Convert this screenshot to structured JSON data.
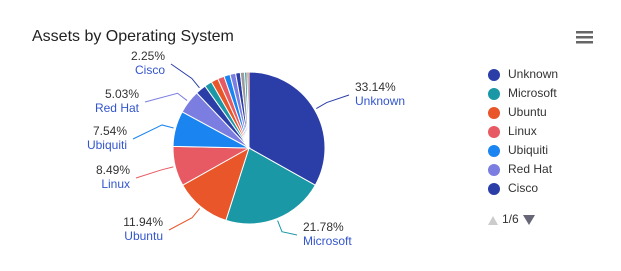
{
  "chart_data": {
    "type": "pie",
    "title": "Assets by Operating System",
    "categories": [
      "Unknown",
      "Microsoft",
      "Ubuntu",
      "Linux",
      "Ubiquiti",
      "Red Hat",
      "Cisco",
      null,
      null,
      null,
      null,
      null,
      null,
      null,
      null,
      null
    ],
    "values": [
      33.14,
      21.78,
      11.94,
      8.49,
      7.54,
      5.03,
      2.25,
      1.6,
      1.5,
      1.4,
      1.3,
      1.2,
      1.0,
      0.9,
      0.5,
      0.43
    ],
    "value_labels": [
      "33.14%",
      "21.78%",
      "11.94%",
      "8.49%",
      "7.54%",
      "5.03%",
      "2.25%",
      null,
      null,
      null,
      null,
      null,
      null,
      null,
      null,
      null
    ],
    "colors": [
      "#2b3ea8",
      "#1a98a6",
      "#e8562a",
      "#e85a63",
      "#1a84f0",
      "#7b7ee0",
      "#2b3ea8",
      "#1a98a6",
      "#e8562a",
      "#e85a63",
      "#1a84f0",
      "#7b7ee0",
      "#2b3ea8",
      "#9a9a9a",
      "#1a98a6",
      "#e8562a"
    ],
    "legend_position": "right",
    "legend_pager": "1/6"
  }
}
